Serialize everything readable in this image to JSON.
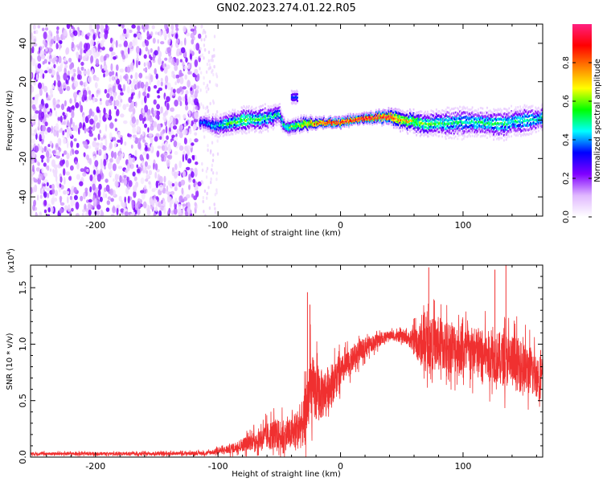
{
  "figure": {
    "title": "GN02.2023.274.01.22.R05"
  },
  "chart_data": [
    {
      "type": "heatmap",
      "xlabel": "Height of straight line (km)",
      "ylabel": "Frequency (Hz)",
      "xlim": [
        -253,
        165
      ],
      "ylim": [
        -50,
        50
      ],
      "x_ticks": [
        -200,
        -100,
        0,
        100
      ],
      "y_ticks": [
        -40,
        -20,
        0,
        20,
        40
      ],
      "colorbar": {
        "label": "Normalized spectral amplitude",
        "range": [
          0,
          1
        ],
        "ticks": [
          "0.0",
          "0.2",
          "0.4",
          "0.6",
          "0.8"
        ],
        "colors": [
          "#ffffff",
          "#e0b8ff",
          "#8000ff",
          "#0000ff",
          "#00ffff",
          "#00ff00",
          "#ffff00",
          "#ff8000",
          "#ff0000",
          "#ff2080"
        ]
      },
      "regions": {
        "noise": {
          "x_range": [
            -253,
            -115
          ],
          "y_range": [
            -50,
            50
          ],
          "amplitude": 0.15
        },
        "sparse_noise": {
          "x_range": [
            -115,
            -100
          ],
          "y_range": [
            -50,
            50
          ],
          "amplitude": 0.05
        },
        "signal_ridge": [
          {
            "x": -115,
            "freq": -1,
            "width": 3,
            "amp": 0.35
          },
          {
            "x": -100,
            "freq": -3,
            "width": 4,
            "amp": 0.45
          },
          {
            "x": -80,
            "freq": 0,
            "width": 5,
            "amp": 0.55
          },
          {
            "x": -60,
            "freq": 1,
            "width": 5,
            "amp": 0.5
          },
          {
            "x": -50,
            "freq": 3,
            "width": 4,
            "amp": 0.45
          },
          {
            "x": -45,
            "freq": -4,
            "width": 3,
            "amp": 0.5
          },
          {
            "x": -30,
            "freq": -2,
            "width": 3,
            "amp": 0.7
          },
          {
            "x": -10,
            "freq": -1,
            "width": 2,
            "amp": 0.9
          },
          {
            "x": 0,
            "freq": -1,
            "width": 2,
            "amp": 0.95
          },
          {
            "x": 20,
            "freq": 1,
            "width": 2,
            "amp": 0.95
          },
          {
            "x": 40,
            "freq": 2,
            "width": 3,
            "amp": 0.9
          },
          {
            "x": 50,
            "freq": 0,
            "width": 4,
            "amp": 0.7
          },
          {
            "x": 70,
            "freq": -2,
            "width": 5,
            "amp": 0.55
          },
          {
            "x": 100,
            "freq": -1,
            "width": 6,
            "amp": 0.45
          },
          {
            "x": 130,
            "freq": -2,
            "width": 6,
            "amp": 0.5
          },
          {
            "x": 165,
            "freq": 1,
            "width": 5,
            "amp": 0.45
          }
        ],
        "side_blob": {
          "x_range": [
            -40,
            -35
          ],
          "freq": 12,
          "width": 3,
          "amp": 0.35
        }
      }
    },
    {
      "type": "line",
      "xlabel": "Height of straight line (km)",
      "ylabel": "SNR (10 * v/v)",
      "y_multiplier_label": "(x10",
      "y_multiplier_exp": "4",
      "y_multiplier_close": ")",
      "xlim": [
        -253,
        165
      ],
      "ylim": [
        0,
        17000
      ],
      "x_ticks": [
        -200,
        -100,
        0,
        100
      ],
      "y_ticks": [
        "0.0",
        "0.5",
        "1.0",
        "1.5"
      ],
      "y_tick_values": [
        0,
        5000,
        10000,
        15000
      ],
      "color": "#f03030",
      "envelope": [
        {
          "x": -253,
          "base": 300,
          "noise": 250
        },
        {
          "x": -150,
          "base": 300,
          "noise": 250
        },
        {
          "x": -110,
          "base": 350,
          "noise": 300
        },
        {
          "x": -90,
          "base": 700,
          "noise": 700
        },
        {
          "x": -70,
          "base": 1500,
          "noise": 1500
        },
        {
          "x": -55,
          "base": 2000,
          "noise": 2500
        },
        {
          "x": -40,
          "base": 2000,
          "noise": 2500
        },
        {
          "x": -30,
          "base": 3000,
          "noise": 4000
        },
        {
          "x": -25,
          "base": 6000,
          "noise": 6000
        },
        {
          "x": -15,
          "base": 5500,
          "noise": 4000
        },
        {
          "x": 0,
          "base": 7500,
          "noise": 2500
        },
        {
          "x": 20,
          "base": 9800,
          "noise": 1500
        },
        {
          "x": 40,
          "base": 10800,
          "noise": 700
        },
        {
          "x": 55,
          "base": 10500,
          "noise": 1000
        },
        {
          "x": 65,
          "base": 10000,
          "noise": 3500
        },
        {
          "x": 80,
          "base": 10000,
          "noise": 4500
        },
        {
          "x": 100,
          "base": 9500,
          "noise": 4000
        },
        {
          "x": 120,
          "base": 9000,
          "noise": 4000
        },
        {
          "x": 140,
          "base": 8500,
          "noise": 4500
        },
        {
          "x": 165,
          "base": 7000,
          "noise": 3500
        }
      ],
      "spikes": [
        {
          "x": -27,
          "value": 14600
        },
        {
          "x": -25,
          "value": 13500
        },
        {
          "x": 72,
          "value": 16800
        },
        {
          "x": 126,
          "value": 16600
        },
        {
          "x": 135,
          "value": 17000
        }
      ]
    }
  ]
}
